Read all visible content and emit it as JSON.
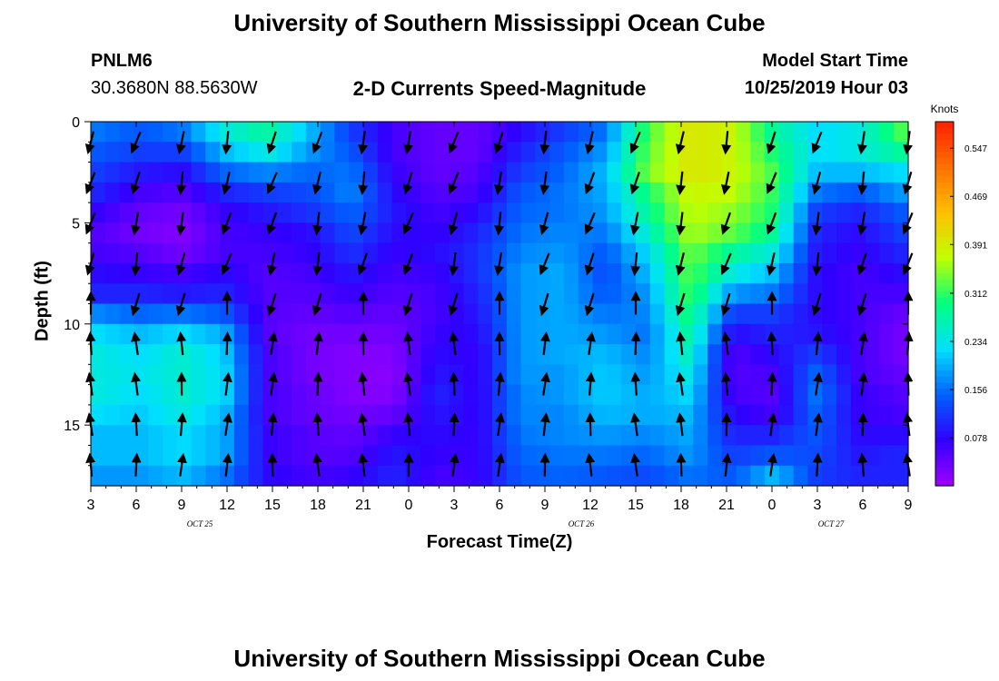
{
  "title_top": "University of Southern Mississippi Ocean Cube",
  "title_bottom": "University of Southern Mississippi Ocean Cube",
  "station": {
    "id": "PNLM6",
    "coords": "30.3680N 88.5630W"
  },
  "model": {
    "label": "Model Start Time",
    "value": "10/25/2019 Hour 03"
  },
  "chart_data": {
    "type": "heatmap",
    "title": "2-D Currents Speed-Magnitude",
    "xlabel": "Forecast Time(Z)",
    "ylabel": "Depth (ft)",
    "x_tick_labels": [
      "3",
      "6",
      "9",
      "12",
      "15",
      "18",
      "21",
      "0",
      "3",
      "6",
      "9",
      "12",
      "15",
      "18",
      "21",
      "0",
      "3",
      "6",
      "9"
    ],
    "date_labels": [
      {
        "text": "OCT 25",
        "at_tick": 2.4
      },
      {
        "text": "OCT 26",
        "at_tick": 10.8
      },
      {
        "text": "OCT 27",
        "at_tick": 16.3
      }
    ],
    "y_ticks": [
      0,
      5,
      10,
      15
    ],
    "ylim": [
      0,
      18
    ],
    "y_inverted": true,
    "colorbar": {
      "unit": "Knots",
      "tick_labels": [
        "0.547",
        "0.469",
        "0.391",
        "0.312",
        "0.234",
        "0.156",
        "0.078"
      ],
      "range": [
        0.0,
        0.59
      ],
      "colors": [
        "#a000ff",
        "#3000ff",
        "#0060ff",
        "#00e0ff",
        "#00ff80",
        "#c0ff00",
        "#ffc000",
        "#ff7000",
        "#ff2000"
      ]
    },
    "time_steps": 57,
    "depth_levels": 18,
    "speed_keyframes_knots": [
      [
        0.16,
        0.14,
        0.12,
        0.1,
        0.07,
        0.05,
        0.06,
        0.08,
        0.1,
        0.17,
        0.22,
        0.24,
        0.24,
        0.24,
        0.22,
        0.2,
        0.2,
        0.18
      ],
      [
        0.14,
        0.12,
        0.09,
        0.06,
        0.04,
        0.03,
        0.05,
        0.07,
        0.1,
        0.15,
        0.2,
        0.22,
        0.23,
        0.22,
        0.21,
        0.2,
        0.2,
        0.18
      ],
      [
        0.16,
        0.12,
        0.08,
        0.05,
        0.03,
        0.02,
        0.03,
        0.06,
        0.09,
        0.16,
        0.22,
        0.25,
        0.25,
        0.25,
        0.24,
        0.22,
        0.22,
        0.2
      ],
      [
        0.24,
        0.2,
        0.15,
        0.1,
        0.07,
        0.06,
        0.06,
        0.08,
        0.1,
        0.14,
        0.19,
        0.21,
        0.22,
        0.22,
        0.2,
        0.19,
        0.19,
        0.16
      ],
      [
        0.28,
        0.24,
        0.17,
        0.12,
        0.09,
        0.07,
        0.06,
        0.05,
        0.05,
        0.05,
        0.05,
        0.06,
        0.06,
        0.06,
        0.06,
        0.07,
        0.07,
        0.08
      ],
      [
        0.2,
        0.18,
        0.15,
        0.13,
        0.11,
        0.08,
        0.07,
        0.06,
        0.05,
        0.04,
        0.03,
        0.03,
        0.03,
        0.04,
        0.04,
        0.05,
        0.05,
        0.06
      ],
      [
        0.12,
        0.14,
        0.16,
        0.17,
        0.15,
        0.13,
        0.11,
        0.09,
        0.07,
        0.05,
        0.03,
        0.02,
        0.02,
        0.02,
        0.03,
        0.04,
        0.05,
        0.07
      ],
      [
        0.06,
        0.06,
        0.07,
        0.08,
        0.09,
        0.08,
        0.07,
        0.06,
        0.05,
        0.04,
        0.03,
        0.02,
        0.015,
        0.02,
        0.04,
        0.07,
        0.09,
        0.1
      ],
      [
        0.04,
        0.04,
        0.04,
        0.05,
        0.06,
        0.07,
        0.08,
        0.07,
        0.06,
        0.06,
        0.07,
        0.08,
        0.09,
        0.1,
        0.09,
        0.08,
        0.07,
        0.06
      ],
      [
        0.04,
        0.04,
        0.05,
        0.06,
        0.08,
        0.1,
        0.11,
        0.11,
        0.1,
        0.09,
        0.08,
        0.07,
        0.07,
        0.07,
        0.07,
        0.07,
        0.07,
        0.07
      ],
      [
        0.08,
        0.1,
        0.12,
        0.14,
        0.15,
        0.16,
        0.17,
        0.18,
        0.18,
        0.18,
        0.18,
        0.18,
        0.18,
        0.17,
        0.17,
        0.16,
        0.15,
        0.14
      ],
      [
        0.12,
        0.14,
        0.15,
        0.16,
        0.16,
        0.17,
        0.18,
        0.19,
        0.19,
        0.19,
        0.19,
        0.19,
        0.18,
        0.18,
        0.17,
        0.17,
        0.16,
        0.15
      ],
      [
        0.16,
        0.18,
        0.2,
        0.19,
        0.18,
        0.16,
        0.14,
        0.13,
        0.14,
        0.16,
        0.18,
        0.2,
        0.21,
        0.21,
        0.2,
        0.18,
        0.16,
        0.14
      ],
      [
        0.32,
        0.33,
        0.34,
        0.3,
        0.28,
        0.25,
        0.22,
        0.2,
        0.18,
        0.17,
        0.16,
        0.17,
        0.18,
        0.19,
        0.19,
        0.17,
        0.15,
        0.13
      ],
      [
        0.4,
        0.4,
        0.4,
        0.38,
        0.37,
        0.36,
        0.34,
        0.33,
        0.32,
        0.3,
        0.28,
        0.26,
        0.24,
        0.22,
        0.2,
        0.19,
        0.18,
        0.16
      ],
      [
        0.38,
        0.38,
        0.38,
        0.37,
        0.35,
        0.33,
        0.28,
        0.24,
        0.18,
        0.12,
        0.08,
        0.05,
        0.05,
        0.06,
        0.08,
        0.1,
        0.12,
        0.14
      ],
      [
        0.28,
        0.3,
        0.32,
        0.31,
        0.3,
        0.28,
        0.24,
        0.2,
        0.16,
        0.12,
        0.1,
        0.08,
        0.06,
        0.05,
        0.06,
        0.1,
        0.14,
        0.2
      ],
      [
        0.22,
        0.22,
        0.2,
        0.16,
        0.12,
        0.1,
        0.09,
        0.08,
        0.08,
        0.08,
        0.09,
        0.12,
        0.15,
        0.16,
        0.15,
        0.14,
        0.13,
        0.12
      ],
      [
        0.24,
        0.24,
        0.2,
        0.14,
        0.1,
        0.08,
        0.07,
        0.06,
        0.06,
        0.06,
        0.06,
        0.06,
        0.06,
        0.07,
        0.07,
        0.08,
        0.09,
        0.1
      ],
      [
        0.32,
        0.28,
        0.22,
        0.18,
        0.14,
        0.12,
        0.1,
        0.08,
        0.06,
        0.04,
        0.03,
        0.03,
        0.04,
        0.05,
        0.06,
        0.08,
        0.1,
        0.1
      ]
    ],
    "vector_tick_positions": [
      0,
      1,
      2,
      3,
      4,
      5,
      6,
      7,
      8,
      9,
      10,
      11,
      12,
      13,
      14,
      15,
      16,
      17,
      18
    ],
    "vector_depths_ft": [
      1,
      3,
      5,
      7,
      9,
      11,
      13,
      15,
      17
    ]
  }
}
